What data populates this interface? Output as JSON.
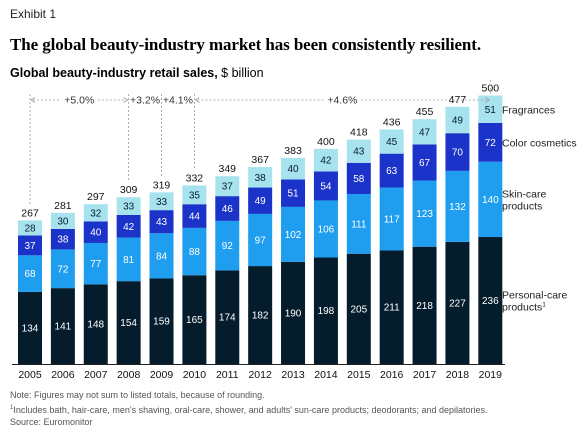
{
  "exhibit_label": "Exhibit 1",
  "headline": "The global beauty-industry market has been consistently resilient.",
  "subtitle_bold": "Global beauty-industry retail sales,",
  "subtitle_unit": " $ billion",
  "colors": {
    "personal_care": "#051c2c",
    "skin_care": "#1f9ef0",
    "color_cosmetics": "#1b33c9",
    "fragrances": "#a7e3ee"
  },
  "chart_data": {
    "type": "bar",
    "stacked": true,
    "categories": [
      "2005",
      "2006",
      "2007",
      "2008",
      "2009",
      "2010",
      "2011",
      "2012",
      "2013",
      "2014",
      "2015",
      "2016",
      "2017",
      "2018",
      "2019"
    ],
    "series": [
      {
        "key": "personal_care",
        "name": "Personal-care products",
        "footnote_mark": "1",
        "values": [
          134,
          141,
          148,
          154,
          159,
          165,
          174,
          182,
          190,
          198,
          205,
          211,
          218,
          227,
          236
        ]
      },
      {
        "key": "skin_care",
        "name": "Skin-care products",
        "values": [
          68,
          72,
          77,
          81,
          84,
          88,
          92,
          97,
          102,
          106,
          111,
          117,
          123,
          132,
          140
        ]
      },
      {
        "key": "color_cosmetics",
        "name": "Color cosmetics",
        "values": [
          37,
          38,
          40,
          42,
          43,
          44,
          46,
          49,
          51,
          54,
          58,
          63,
          67,
          70,
          72
        ]
      },
      {
        "key": "fragrances",
        "name": "Fragrances",
        "values": [
          28,
          30,
          32,
          33,
          33,
          35,
          37,
          38,
          40,
          42,
          43,
          45,
          47,
          49,
          51
        ]
      }
    ],
    "totals": [
      267,
      281,
      297,
      309,
      319,
      332,
      349,
      367,
      383,
      400,
      418,
      436,
      455,
      477,
      500
    ],
    "growth_annotations": [
      {
        "label": "+5.0%",
        "from": "2005",
        "to": "2008"
      },
      {
        "label": "+3.2%",
        "from": "2008",
        "to": "2009"
      },
      {
        "label": "+4.1%",
        "from": "2009",
        "to": "2010"
      },
      {
        "label": "+4.6%",
        "from": "2010",
        "to": "2019"
      }
    ],
    "legend_position": "right",
    "grid": false
  },
  "notes": {
    "note": "Note: Figures may not sum to listed totals, because of rounding.",
    "footnote_mark": "1",
    "footnote": "Includes bath, hair-care, men's shaving, oral-care, shower, and adults' sun-care products; deodorants; and depilatories.",
    "source": "Source: Euromonitor"
  }
}
